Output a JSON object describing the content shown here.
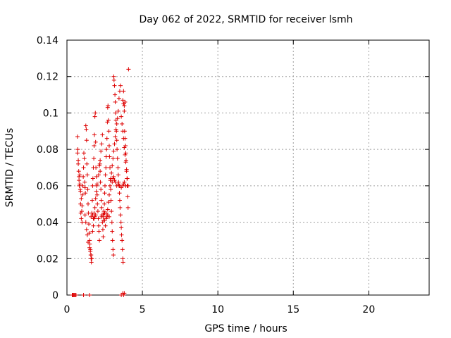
{
  "chart_data": {
    "type": "scatter",
    "title": "Day 062 of 2022, SRMTID for receiver lsmh",
    "xlabel": "GPS time / hours",
    "ylabel": "SRMTID / TECUs",
    "xlim": [
      0,
      24
    ],
    "ylim": [
      0,
      0.14
    ],
    "xticks": [
      0,
      5,
      10,
      15,
      20
    ],
    "xtick_labels": [
      "0",
      "5",
      "10",
      "15",
      "20"
    ],
    "yticks": [
      0,
      0.02,
      0.04,
      0.06,
      0.08,
      0.1,
      0.12,
      0.14
    ],
    "ytick_labels": [
      "0",
      "0.02",
      "0.04",
      "0.06",
      "0.08",
      "0.1",
      "0.12",
      "0.14"
    ],
    "grid": true,
    "marker": "+",
    "color": "#dd0000",
    "series": [
      {
        "name": "SRMTID",
        "x": [
          0.35,
          0.4,
          0.45,
          0.5,
          0.55,
          0.6,
          1.1,
          1.5,
          0.7,
          0.72,
          0.75,
          0.78,
          0.8,
          0.82,
          0.85,
          0.88,
          0.9,
          0.92,
          0.95,
          0.98,
          1.0,
          1.02,
          1.05,
          1.08,
          1.1,
          1.12,
          1.15,
          1.18,
          1.2,
          1.22,
          1.25,
          1.28,
          1.3,
          1.32,
          1.35,
          1.38,
          1.4,
          1.42,
          1.45,
          1.48,
          1.5,
          1.52,
          1.55,
          1.58,
          1.6,
          1.62,
          1.65,
          1.68,
          1.7,
          1.72,
          1.75,
          1.78,
          1.8,
          1.82,
          1.85,
          1.88,
          1.9,
          1.92,
          1.95,
          1.98,
          2.0,
          2.02,
          2.05,
          2.08,
          2.1,
          2.12,
          2.15,
          2.18,
          2.2,
          2.22,
          2.25,
          2.28,
          2.3,
          2.32,
          2.35,
          2.38,
          2.4,
          2.42,
          2.45,
          2.48,
          2.5,
          2.52,
          2.55,
          2.58,
          2.6,
          2.62,
          2.65,
          2.68,
          2.7,
          2.72,
          2.75,
          2.78,
          2.8,
          2.82,
          2.85,
          2.88,
          2.9,
          2.92,
          2.95,
          2.98,
          3.0,
          3.02,
          3.05,
          3.08,
          3.1,
          3.12,
          3.15,
          3.18,
          3.2,
          3.22,
          3.25,
          3.28,
          3.3,
          3.32,
          3.35,
          3.38,
          3.4,
          3.42,
          3.45,
          3.48,
          3.5,
          3.52,
          3.55,
          3.58,
          3.6,
          3.62,
          3.65,
          3.68,
          3.7,
          3.72,
          3.75,
          3.78,
          3.8,
          3.82,
          3.85,
          3.88,
          3.9,
          3.92,
          3.95,
          3.98,
          4.0,
          4.02,
          4.05,
          4.08,
          0.7,
          0.75,
          0.8,
          0.85,
          0.9,
          0.95,
          1.0,
          1.2,
          1.25,
          1.3,
          1.35,
          1.4,
          1.5,
          1.55,
          1.6,
          1.65,
          1.7,
          1.75,
          1.8,
          1.85,
          1.9,
          1.95,
          2.0,
          2.1,
          2.15,
          2.2,
          2.25,
          2.3,
          2.35,
          2.4,
          2.45,
          2.5,
          2.55,
          2.6,
          2.65,
          2.7,
          2.75,
          2.8,
          2.85,
          2.9,
          2.95,
          3.0,
          3.05,
          3.1,
          3.15,
          3.2,
          3.25,
          3.3,
          3.35,
          3.4,
          3.45,
          3.5,
          3.55,
          3.6,
          3.65,
          3.7,
          3.75,
          3.8,
          3.85,
          3.9,
          3.95,
          4.0,
          4.05,
          2.9,
          3.0,
          3.05,
          3.1,
          3.15,
          3.2,
          3.3,
          3.4,
          3.5,
          3.6,
          3.7,
          3.75,
          3.8,
          3.9,
          4.0,
          1.6,
          1.7,
          1.75,
          1.8,
          1.85,
          1.9,
          2.3,
          2.4,
          2.5,
          2.6,
          2.7,
          2.8,
          3.6,
          3.7,
          3.75,
          3.8,
          3.7,
          3.75,
          3.8,
          3.85
        ],
        "y": [
          0.0,
          0.0,
          0.0,
          0.0,
          0.0,
          0.0,
          0.0,
          0.0,
          0.087,
          0.08,
          0.074,
          0.068,
          0.063,
          0.06,
          0.066,
          0.058,
          0.05,
          0.045,
          0.042,
          0.046,
          0.04,
          0.055,
          0.06,
          0.065,
          0.07,
          0.078,
          0.075,
          0.062,
          0.059,
          0.056,
          0.093,
          0.091,
          0.085,
          0.072,
          0.066,
          0.058,
          0.05,
          0.045,
          0.039,
          0.034,
          0.03,
          0.028,
          0.025,
          0.022,
          0.02,
          0.018,
          0.045,
          0.052,
          0.06,
          0.064,
          0.07,
          0.075,
          0.082,
          0.088,
          0.098,
          0.1,
          0.084,
          0.07,
          0.065,
          0.06,
          0.055,
          0.05,
          0.046,
          0.042,
          0.038,
          0.035,
          0.03,
          0.072,
          0.068,
          0.062,
          0.058,
          0.052,
          0.048,
          0.044,
          0.04,
          0.036,
          0.032,
          0.041,
          0.045,
          0.05,
          0.056,
          0.06,
          0.066,
          0.07,
          0.076,
          0.08,
          0.086,
          0.095,
          0.103,
          0.104,
          0.096,
          0.09,
          0.082,
          0.076,
          0.07,
          0.063,
          0.058,
          0.052,
          0.046,
          0.04,
          0.035,
          0.03,
          0.025,
          0.022,
          0.12,
          0.118,
          0.115,
          0.11,
          0.106,
          0.1,
          0.096,
          0.09,
          0.085,
          0.08,
          0.075,
          0.07,
          0.066,
          0.062,
          0.06,
          0.056,
          0.052,
          0.048,
          0.044,
          0.04,
          0.037,
          0.033,
          0.03,
          0.025,
          0.02,
          0.018,
          0.112,
          0.105,
          0.101,
          0.09,
          0.086,
          0.082,
          0.078,
          0.074,
          0.069,
          0.064,
          0.06,
          0.054,
          0.048,
          0.124,
          0.078,
          0.072,
          0.065,
          0.061,
          0.057,
          0.053,
          0.049,
          0.044,
          0.04,
          0.036,
          0.033,
          0.029,
          0.026,
          0.024,
          0.022,
          0.02,
          0.035,
          0.038,
          0.042,
          0.048,
          0.053,
          0.057,
          0.061,
          0.066,
          0.071,
          0.074,
          0.079,
          0.083,
          0.088,
          0.043,
          0.046,
          0.041,
          0.038,
          0.045,
          0.043,
          0.047,
          0.051,
          0.055,
          0.06,
          0.064,
          0.067,
          0.071,
          0.075,
          0.079,
          0.083,
          0.087,
          0.091,
          0.094,
          0.097,
          0.101,
          0.108,
          0.112,
          0.115,
          0.098,
          0.094,
          0.09,
          0.086,
          0.081,
          0.077,
          0.073,
          0.068,
          0.064,
          0.06,
          0.063,
          0.062,
          0.064,
          0.065,
          0.063,
          0.062,
          0.06,
          0.061,
          0.06,
          0.059,
          0.06,
          0.061,
          0.062,
          0.06,
          0.06,
          0.043,
          0.044,
          0.042,
          0.045,
          0.043,
          0.044,
          0.043,
          0.044,
          0.045,
          0.042,
          0.044,
          0.043,
          0.0,
          0.001,
          0.0,
          0.001,
          0.107,
          0.105,
          0.104,
          0.106
        ]
      }
    ]
  }
}
